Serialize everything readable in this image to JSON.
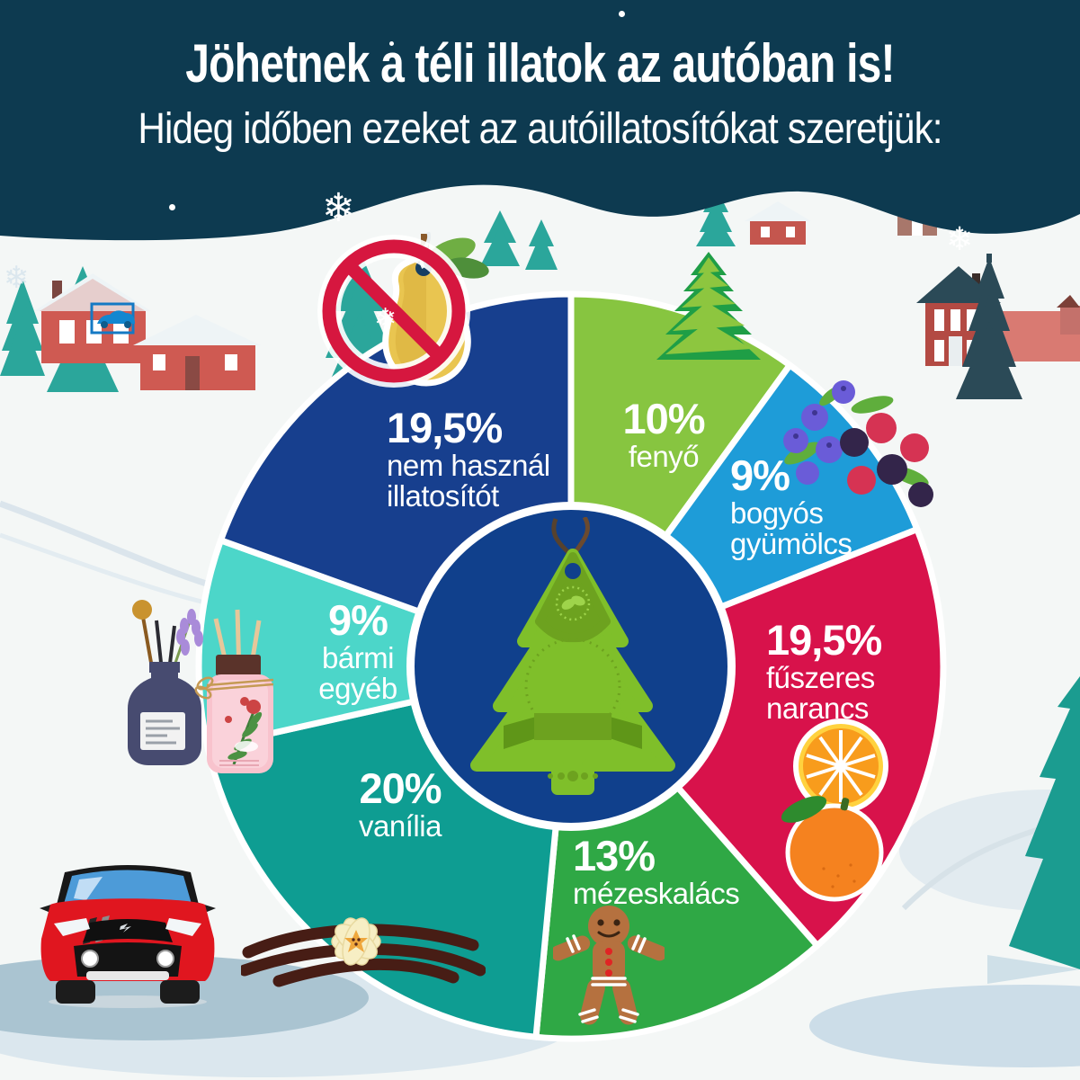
{
  "header": {
    "title": "Jöhetnek a téli illatok az autóban is!",
    "subtitle": "Hideg időben ezeket az autóillatosítókat szeretjük:"
  },
  "chart_data": {
    "type": "pie",
    "donut": true,
    "title": "Jöhetnek a téli illatok az autóban is!",
    "subtitle": "Hideg időben ezeket az autóillatosítókat szeretjük:",
    "unit": "%",
    "start_angle_deg": 0,
    "direction": "clockwise",
    "segments": [
      {
        "name": "fenyő",
        "value": 10,
        "pct_label": "10%",
        "color": "#87c540",
        "label_lines": [
          "fenyő"
        ]
      },
      {
        "name": "bogyós gyümölcs",
        "value": 9,
        "pct_label": "9%",
        "color": "#1e9cd8",
        "label_lines": [
          "bogyós",
          "gyümölcs"
        ]
      },
      {
        "name": "fűszeres narancs",
        "value": 19.5,
        "pct_label": "19,5%",
        "color": "#d8124b",
        "label_lines": [
          "fűszeres",
          "narancs"
        ]
      },
      {
        "name": "mézeskalács",
        "value": 13,
        "pct_label": "13%",
        "color": "#2fa845",
        "label_lines": [
          "mézeskalács"
        ]
      },
      {
        "name": "vanília",
        "value": 20,
        "pct_label": "20%",
        "color": "#0e9d92",
        "label_lines": [
          "vanília"
        ]
      },
      {
        "name": "bármi egyéb",
        "value": 9,
        "pct_label": "9%",
        "color": "#4cd6c9",
        "label_lines": [
          "bármi",
          "egyéb"
        ]
      },
      {
        "name": "nem használ illatosítót",
        "value": 19.5,
        "pct_label": "19,5%",
        "color": "#173f8e",
        "label_lines": [
          "nem használ",
          "illatosítót"
        ]
      }
    ]
  },
  "colors": {
    "header_bg": "#0d3a50",
    "snow": "#f4f7f6",
    "center_circle": "#10408c",
    "separator": "#ffffff",
    "prohibition_red": "#d6173f",
    "freshener_green": "#7fbf2a"
  },
  "icons": {
    "snowflake": "❄",
    "center": "pine-tree-air-freshener",
    "decorations": [
      "no-air-freshener-pear",
      "pine-tree",
      "winter-berries",
      "orange-slice-and-orange",
      "gingerbread-man",
      "vanilla-pods-and-flower",
      "reed-diffusers",
      "red-suv-car",
      "snowy-village-left",
      "snowy-village-right",
      "right-spruce"
    ]
  }
}
